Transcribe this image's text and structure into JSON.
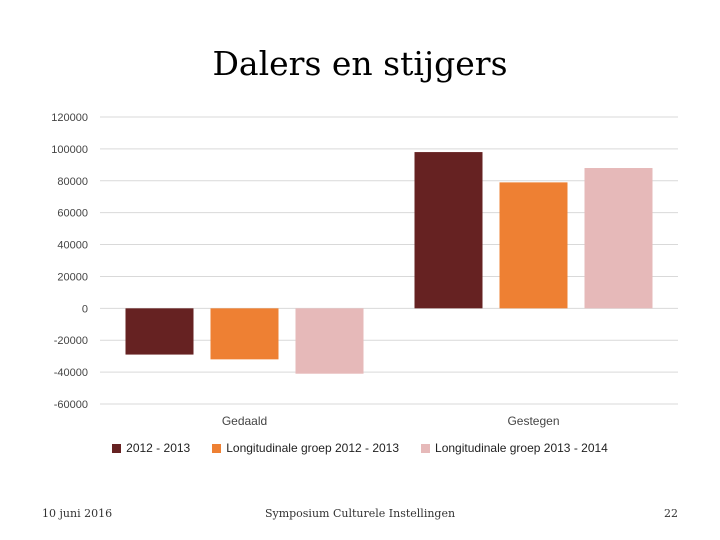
{
  "slide": {
    "title": "Dalers en stijgers"
  },
  "footer": {
    "date": "10 juni 2016",
    "event": "Symposium Culturele Instellingen",
    "page_number": "22"
  },
  "chart_data": {
    "type": "bar",
    "categories": [
      "Gedaald",
      "Gestegen"
    ],
    "series": [
      {
        "name": "2012 - 2013",
        "color": "#662222",
        "values": [
          -29000,
          98000
        ]
      },
      {
        "name": "Longitudinale groep 2012 - 2013",
        "color": "#ee8033",
        "values": [
          -32000,
          79000
        ]
      },
      {
        "name": "Longitudinale groep 2013 - 2014",
        "color": "#e6b9b9",
        "values": [
          -41000,
          88000
        ]
      }
    ],
    "ylim": [
      -60000,
      120000
    ],
    "yticks": [
      "120000",
      "100000",
      "80000",
      "60000",
      "40000",
      "20000",
      "0",
      "-20000",
      "-40000",
      "-60000"
    ],
    "grid": true,
    "legend_position": "bottom"
  }
}
